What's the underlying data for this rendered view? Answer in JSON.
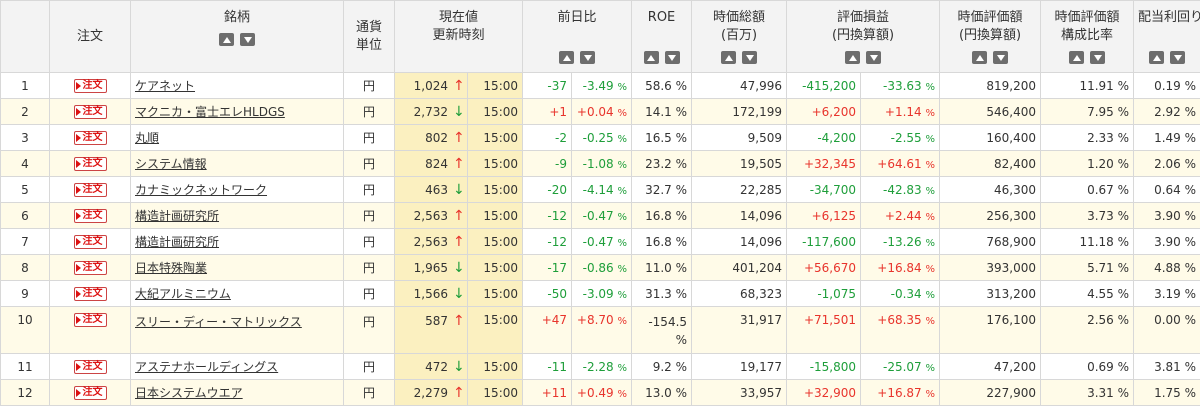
{
  "headers": {
    "order": "注文",
    "name": "銘柄",
    "currency": [
      "通貨",
      "単位"
    ],
    "price": [
      "現在値",
      "更新時刻"
    ],
    "change": "前日比",
    "roe": "ROE",
    "mktcap": [
      "時価総額",
      "(百万)"
    ],
    "pl": [
      "評価損益",
      "(円換算額)"
    ],
    "value": [
      "時価評価額",
      "(円換算額)"
    ],
    "ratio": [
      "時価評価額",
      "構成比率"
    ],
    "dividend": "配当利回り"
  },
  "icons": {
    "sort_up": "sort-ascending-icon",
    "sort_down": "sort-descending-icon",
    "up_arrow": "↑",
    "down_arrow": "↓"
  },
  "colors": {
    "up": "#e8342c",
    "down": "#1e9e3a",
    "highlight": "#fbf0c0"
  },
  "order_label": "注文",
  "rows": [
    {
      "no": "1",
      "name": "ケアネット",
      "cur": "円",
      "price": "1,024",
      "dir": "up",
      "time": "15:00",
      "chg": "-37",
      "chgp": "-3.49",
      "chgdir": "down",
      "roe": "58.6 %",
      "cap": "47,996",
      "pl": "-415,200",
      "plp": "-33.63",
      "pldir": "down",
      "val": "819,200",
      "ratio": "11.91 %",
      "div": "0.19 %"
    },
    {
      "no": "2",
      "name": "マクニカ・富士エレHLDGS",
      "cur": "円",
      "price": "2,732",
      "dir": "down",
      "time": "15:00",
      "chg": "+1",
      "chgp": "+0.04",
      "chgdir": "up",
      "roe": "14.1 %",
      "cap": "172,199",
      "pl": "+6,200",
      "plp": "+1.14",
      "pldir": "up",
      "val": "546,400",
      "ratio": "7.95 %",
      "div": "2.92 %"
    },
    {
      "no": "3",
      "name": "丸順",
      "cur": "円",
      "price": "802",
      "dir": "up",
      "time": "15:00",
      "chg": "-2",
      "chgp": "-0.25",
      "chgdir": "down",
      "roe": "16.5 %",
      "cap": "9,509",
      "pl": "-4,200",
      "plp": "-2.55",
      "pldir": "down",
      "val": "160,400",
      "ratio": "2.33 %",
      "div": "1.49 %"
    },
    {
      "no": "4",
      "name": "システム情報",
      "cur": "円",
      "price": "824",
      "dir": "up",
      "time": "15:00",
      "chg": "-9",
      "chgp": "-1.08",
      "chgdir": "down",
      "roe": "23.2 %",
      "cap": "19,505",
      "pl": "+32,345",
      "plp": "+64.61",
      "pldir": "up",
      "val": "82,400",
      "ratio": "1.20 %",
      "div": "2.06 %"
    },
    {
      "no": "5",
      "name": "カナミックネットワーク",
      "cur": "円",
      "price": "463",
      "dir": "down",
      "time": "15:00",
      "chg": "-20",
      "chgp": "-4.14",
      "chgdir": "down",
      "roe": "32.7 %",
      "cap": "22,285",
      "pl": "-34,700",
      "plp": "-42.83",
      "pldir": "down",
      "val": "46,300",
      "ratio": "0.67 %",
      "div": "0.64 %"
    },
    {
      "no": "6",
      "name": "構造計画研究所",
      "cur": "円",
      "price": "2,563",
      "dir": "up",
      "time": "15:00",
      "chg": "-12",
      "chgp": "-0.47",
      "chgdir": "down",
      "roe": "16.8 %",
      "cap": "14,096",
      "pl": "+6,125",
      "plp": "+2.44",
      "pldir": "up",
      "val": "256,300",
      "ratio": "3.73 %",
      "div": "3.90 %"
    },
    {
      "no": "7",
      "name": "構造計画研究所",
      "cur": "円",
      "price": "2,563",
      "dir": "up",
      "time": "15:00",
      "chg": "-12",
      "chgp": "-0.47",
      "chgdir": "down",
      "roe": "16.8 %",
      "cap": "14,096",
      "pl": "-117,600",
      "plp": "-13.26",
      "pldir": "down",
      "val": "768,900",
      "ratio": "11.18 %",
      "div": "3.90 %"
    },
    {
      "no": "8",
      "name": "日本特殊陶業",
      "cur": "円",
      "price": "1,965",
      "dir": "down",
      "time": "15:00",
      "chg": "-17",
      "chgp": "-0.86",
      "chgdir": "down",
      "roe": "11.0 %",
      "cap": "401,204",
      "pl": "+56,670",
      "plp": "+16.84",
      "pldir": "up",
      "val": "393,000",
      "ratio": "5.71 %",
      "div": "4.88 %"
    },
    {
      "no": "9",
      "name": "大紀アルミニウム",
      "cur": "円",
      "price": "1,566",
      "dir": "down",
      "time": "15:00",
      "chg": "-50",
      "chgp": "-3.09",
      "chgdir": "down",
      "roe": "31.3 %",
      "cap": "68,323",
      "pl": "-1,075",
      "plp": "-0.34",
      "pldir": "down",
      "val": "313,200",
      "ratio": "4.55 %",
      "div": "3.19 %"
    },
    {
      "no": "10",
      "name": "スリー・ディー・マトリックス",
      "cur": "円",
      "price": "587",
      "dir": "up",
      "time": "15:00",
      "chg": "+47",
      "chgp": "+8.70",
      "chgdir": "up",
      "roe": "-154.5 %",
      "cap": "31,917",
      "pl": "+71,501",
      "plp": "+68.35",
      "pldir": "up",
      "val": "176,100",
      "ratio": "2.56 %",
      "div": "0.00 %"
    },
    {
      "no": "11",
      "name": "アステナホールディングス",
      "cur": "円",
      "price": "472",
      "dir": "down",
      "time": "15:00",
      "chg": "-11",
      "chgp": "-2.28",
      "chgdir": "down",
      "roe": "9.2 %",
      "cap": "19,177",
      "pl": "-15,800",
      "plp": "-25.07",
      "pldir": "down",
      "val": "47,200",
      "ratio": "0.69 %",
      "div": "3.81 %"
    },
    {
      "no": "12",
      "name": "日本システムウエア",
      "cur": "円",
      "price": "2,279",
      "dir": "up",
      "time": "15:00",
      "chg": "+11",
      "chgp": "+0.49",
      "chgdir": "up",
      "roe": "13.0 %",
      "cap": "33,957",
      "pl": "+32,900",
      "plp": "+16.87",
      "pldir": "up",
      "val": "227,900",
      "ratio": "3.31 %",
      "div": "1.75 %"
    }
  ]
}
